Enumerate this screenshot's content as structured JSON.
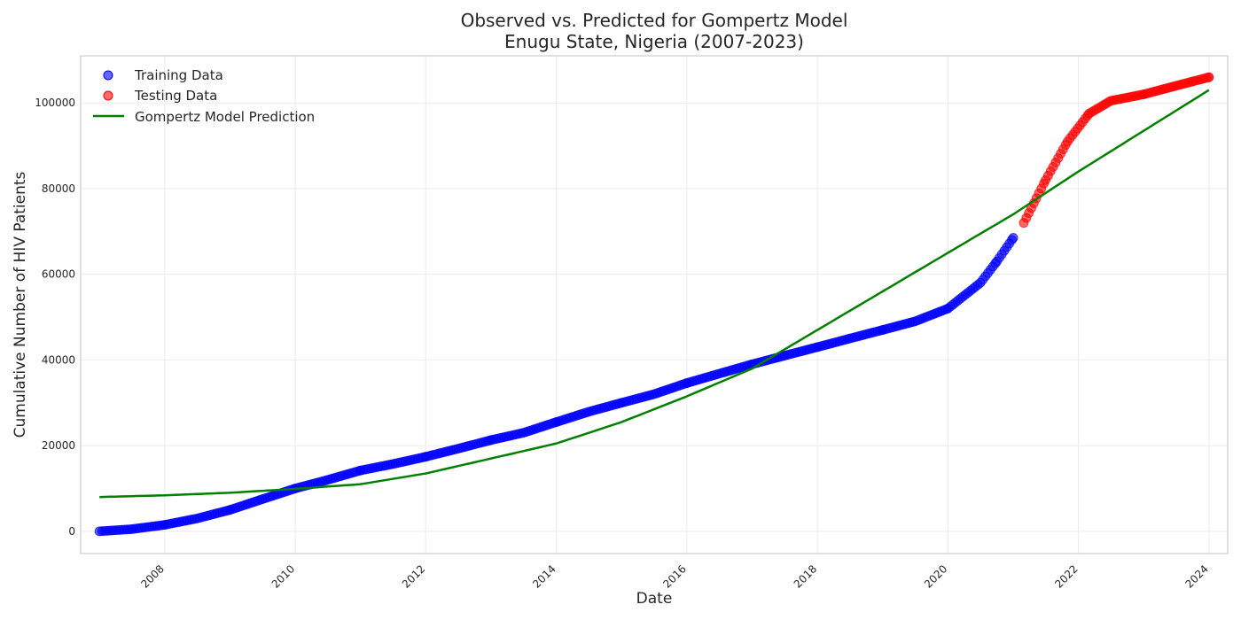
{
  "chart_data": {
    "type": "scatter",
    "title": "Observed vs. Predicted for Gompertz Model",
    "subtitle": "Enugu State, Nigeria (2007-2023)",
    "xlabel": "Date",
    "ylabel": "Cumulative Number of HIV Patients",
    "x_ticks": [
      "2008",
      "2010",
      "2012",
      "2014",
      "2016",
      "2018",
      "2020",
      "2022",
      "2024"
    ],
    "y_ticks": [
      0,
      20000,
      40000,
      60000,
      80000,
      100000
    ],
    "xlim": [
      "2006-09-18",
      "2024-04-15"
    ],
    "ylim": [
      -5200,
      111000
    ],
    "grid": true,
    "legend_position": "top-left",
    "series": [
      {
        "name": "Training Data",
        "kind": "scatter",
        "color": "#0000ff",
        "points": [
          [
            "2007-01-01",
            0
          ],
          [
            "2007-07-01",
            500
          ],
          [
            "2008-01-01",
            1500
          ],
          [
            "2008-07-01",
            3000
          ],
          [
            "2009-01-01",
            5000
          ],
          [
            "2009-07-01",
            7500
          ],
          [
            "2010-01-01",
            10000
          ],
          [
            "2010-07-01",
            12000
          ],
          [
            "2011-01-01",
            14200
          ],
          [
            "2011-07-01",
            15700
          ],
          [
            "2012-01-01",
            17400
          ],
          [
            "2012-07-01",
            19300
          ],
          [
            "2013-01-01",
            21300
          ],
          [
            "2013-07-01",
            23000
          ],
          [
            "2014-01-01",
            25500
          ],
          [
            "2014-07-01",
            27900
          ],
          [
            "2015-01-01",
            30000
          ],
          [
            "2015-07-01",
            32000
          ],
          [
            "2016-01-01",
            34600
          ],
          [
            "2016-07-01",
            36800
          ],
          [
            "2017-01-01",
            39000
          ],
          [
            "2017-07-01",
            41000
          ],
          [
            "2018-01-01",
            43000
          ],
          [
            "2018-07-01",
            45000
          ],
          [
            "2019-01-01",
            47000
          ],
          [
            "2019-07-01",
            49000
          ],
          [
            "2020-01-01",
            52000
          ],
          [
            "2020-07-01",
            58000
          ],
          [
            "2020-10-01",
            63000
          ],
          [
            "2021-01-01",
            68500
          ]
        ]
      },
      {
        "name": "Testing Data",
        "kind": "scatter",
        "color": "#ff0000",
        "points": [
          [
            "2021-03-01",
            72000
          ],
          [
            "2021-07-01",
            82000
          ],
          [
            "2021-11-01",
            91000
          ],
          [
            "2022-03-01",
            97500
          ],
          [
            "2022-07-01",
            100500
          ],
          [
            "2023-01-01",
            102000
          ],
          [
            "2023-07-01",
            104000
          ],
          [
            "2024-01-01",
            106000
          ]
        ]
      },
      {
        "name": "Gompertz Model Prediction",
        "kind": "line",
        "color": "#008000",
        "points": [
          [
            "2007-01-01",
            8000
          ],
          [
            "2008-01-01",
            8400
          ],
          [
            "2009-01-01",
            9000
          ],
          [
            "2010-01-01",
            9900
          ],
          [
            "2011-01-01",
            11000
          ],
          [
            "2012-01-01",
            13500
          ],
          [
            "2013-01-01",
            17000
          ],
          [
            "2014-01-01",
            20500
          ],
          [
            "2015-01-01",
            25500
          ],
          [
            "2016-01-01",
            31500
          ],
          [
            "2017-01-01",
            38000
          ],
          [
            "2018-01-01",
            47000
          ],
          [
            "2019-01-01",
            56000
          ],
          [
            "2020-01-01",
            65000
          ],
          [
            "2021-01-01",
            74000
          ],
          [
            "2022-01-01",
            84000
          ],
          [
            "2023-01-01",
            93500
          ],
          [
            "2024-01-01",
            103000
          ]
        ]
      }
    ]
  }
}
